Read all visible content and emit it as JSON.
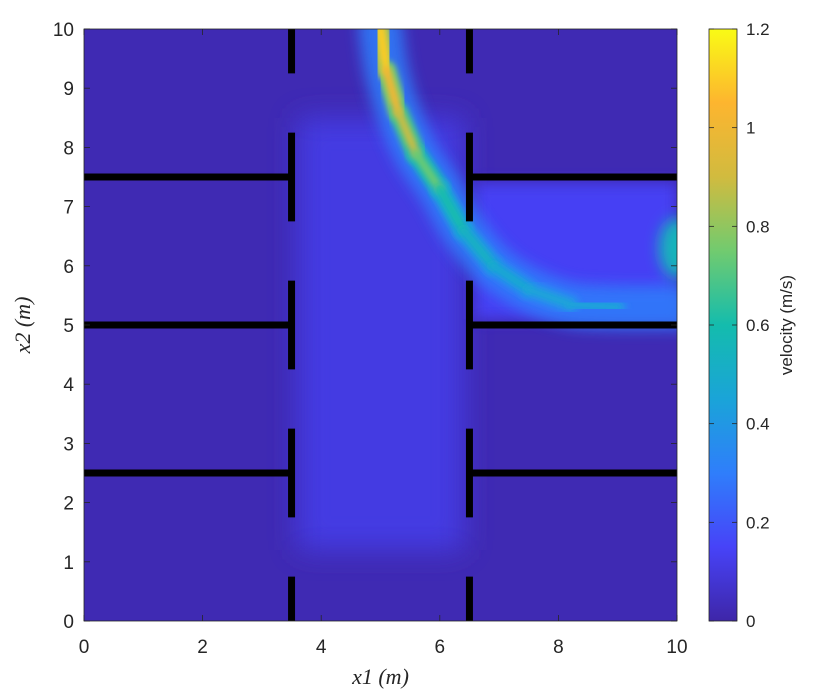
{
  "chart_data": {
    "type": "heatmap",
    "title": "",
    "xlabel": "x1 (m)",
    "ylabel": "x2 (m)",
    "xlim": [
      0,
      10
    ],
    "ylim": [
      0,
      10
    ],
    "xticks": [
      "0",
      "2",
      "4",
      "6",
      "8",
      "10"
    ],
    "yticks": [
      "0",
      "1",
      "2",
      "3",
      "4",
      "5",
      "6",
      "7",
      "8",
      "9",
      "10"
    ],
    "colorbar": {
      "label": "velocity (m/s)",
      "range": [
        0,
        1.2
      ],
      "ticks": [
        "0",
        "0.2",
        "0.4",
        "0.6",
        "0.8",
        "1",
        "1.2"
      ],
      "colormap": [
        "#3e26a8",
        "#4743f8",
        "#2f7efb",
        "#1aa4d8",
        "#14bcad",
        "#71cb6f",
        "#d1bb3f",
        "#fdb52f",
        "#f9fb15"
      ]
    },
    "background_velocity": 0.02,
    "walls": [
      {
        "x": [
          0,
          3.5
        ],
        "y": [
          7.5,
          7.5
        ]
      },
      {
        "x": [
          0,
          3.5
        ],
        "y": [
          5.0,
          5.0
        ]
      },
      {
        "x": [
          0,
          3.5
        ],
        "y": [
          2.5,
          2.5
        ]
      },
      {
        "x": [
          6.5,
          10
        ],
        "y": [
          7.5,
          7.5
        ]
      },
      {
        "x": [
          6.5,
          10
        ],
        "y": [
          5.0,
          5.0
        ]
      },
      {
        "x": [
          6.5,
          10
        ],
        "y": [
          2.5,
          2.5
        ]
      },
      {
        "x": [
          3.5,
          3.5
        ],
        "y": [
          9.25,
          10
        ]
      },
      {
        "x": [
          3.5,
          3.5
        ],
        "y": [
          6.75,
          8.25
        ]
      },
      {
        "x": [
          3.5,
          3.5
        ],
        "y": [
          4.25,
          5.75
        ]
      },
      {
        "x": [
          3.5,
          3.5
        ],
        "y": [
          1.75,
          3.25
        ]
      },
      {
        "x": [
          3.5,
          3.5
        ],
        "y": [
          0,
          0.75
        ]
      },
      {
        "x": [
          6.5,
          6.5
        ],
        "y": [
          9.25,
          10
        ]
      },
      {
        "x": [
          6.5,
          6.5
        ],
        "y": [
          6.75,
          8.25
        ]
      },
      {
        "x": [
          6.5,
          6.5
        ],
        "y": [
          4.25,
          5.75
        ]
      },
      {
        "x": [
          6.5,
          6.5
        ],
        "y": [
          1.75,
          3.25
        ]
      },
      {
        "x": [
          6.5,
          6.5
        ],
        "y": [
          0,
          0.75
        ]
      }
    ],
    "corridor_region": {
      "x": [
        3.6,
        6.4
      ],
      "y": [
        1.2,
        8.5
      ],
      "velocity": 0.12
    },
    "room_region": {
      "x": [
        6.6,
        10
      ],
      "y": [
        5.1,
        7.4
      ],
      "velocity": 0.15
    },
    "jet_path": {
      "x": [
        5.0,
        5.1,
        5.3,
        5.6,
        6.0,
        6.4,
        6.9,
        7.5,
        8.2,
        9.0,
        9.8,
        10.0
      ],
      "y": [
        10.0,
        9.3,
        8.6,
        7.9,
        7.3,
        6.6,
        6.0,
        5.6,
        5.35,
        5.3,
        5.3,
        5.3
      ],
      "velocity": [
        1.15,
        1.05,
        0.95,
        0.82,
        0.65,
        0.55,
        0.5,
        0.45,
        0.45,
        0.44,
        0.42,
        0.4
      ]
    },
    "inlet_glow": {
      "x": 10.0,
      "y": 6.3,
      "velocity": 0.55
    }
  }
}
